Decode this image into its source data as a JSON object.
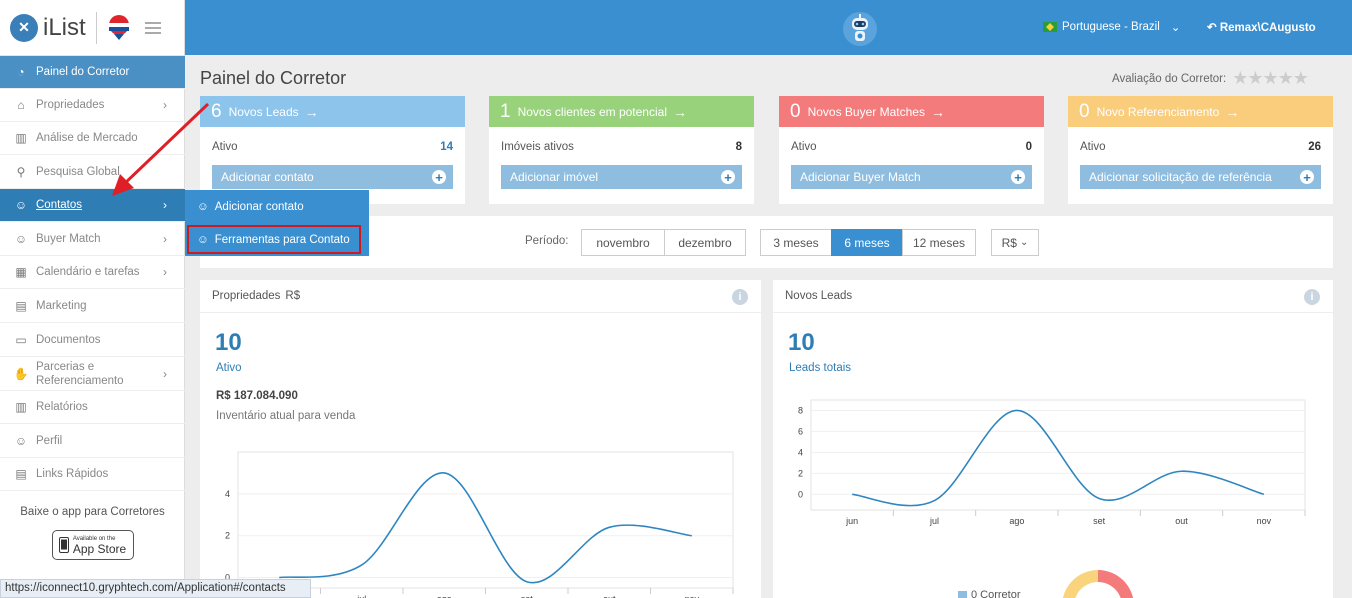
{
  "brand": {
    "logo_text": "iList"
  },
  "topbar": {
    "language": "Portuguese - Brazil",
    "user": "Remax\\CAugusto"
  },
  "sidebar": {
    "items": [
      {
        "label": "Painel do Corretor",
        "icon": "gauge-icon"
      },
      {
        "label": "Propriedades",
        "icon": "home-icon"
      },
      {
        "label": "Análise de Mercado",
        "icon": "bar-chart-icon"
      },
      {
        "label": "Pesquisa Global",
        "icon": "search-icon"
      },
      {
        "label": "Contatos",
        "icon": "contacts-icon"
      },
      {
        "label": "Buyer Match",
        "icon": "user-icon"
      },
      {
        "label": "Calendário e tarefas",
        "icon": "calendar-icon"
      },
      {
        "label": "Marketing",
        "icon": "newspaper-icon"
      },
      {
        "label": "Documentos",
        "icon": "folder-icon"
      },
      {
        "label": "Parcerias e Referenciamento",
        "icon": "handshake-icon"
      },
      {
        "label": "Relatórios",
        "icon": "bar-chart-icon"
      },
      {
        "label": "Perfil",
        "icon": "user-icon"
      },
      {
        "label": "Links Rápidos",
        "icon": "link-icon"
      }
    ],
    "app_promo": "Baixe o app para Corretores",
    "app_store_small": "Available on the",
    "app_store_big": "App Store"
  },
  "flyout": {
    "items": [
      {
        "label": "Adicionar contato"
      },
      {
        "label": "Ferramentas para Contato"
      }
    ]
  },
  "page": {
    "title": "Painel do Corretor",
    "rating_label": "Avaliação do Corretor:",
    "rating_stars": 0
  },
  "cards": [
    {
      "num": "6",
      "title": "Novos Leads",
      "row_label": "Ativo",
      "row_value": "14",
      "button": "Adicionar contato",
      "color": "#8cc4ec"
    },
    {
      "num": "1",
      "title": "Novos clientes em potencial",
      "row_label": "Imóveis ativos",
      "row_value": "8",
      "button": "Adicionar imóvel",
      "color": "#98d27b"
    },
    {
      "num": "0",
      "title": "Novos Buyer Matches",
      "row_label": "Ativo",
      "row_value": "0",
      "button": "Adicionar Buyer Match",
      "color": "#f47b7b"
    },
    {
      "num": "0",
      "title": "Novo Referenciamento",
      "row_label": "Ativo",
      "row_value": "26",
      "button": "Adicionar solicitação de referência",
      "color": "#f9cd7c"
    }
  ],
  "period": {
    "label": "Período:",
    "months": [
      "novembro",
      "dezembro"
    ],
    "ranges": [
      "3 meses",
      "6 meses",
      "12 meses"
    ],
    "selected_range": "6 meses",
    "currency": "R$"
  },
  "panels": {
    "properties": {
      "title": "Propriedades",
      "currency": "R$",
      "count": "10",
      "count_label": "Ativo",
      "amount": "R$ 187.084.090",
      "amount_label": "Inventário atual para venda"
    },
    "leads": {
      "title": "Novos Leads",
      "count": "10",
      "count_label": "Leads totais",
      "legend": "0 Corretor"
    }
  },
  "chart_data": [
    {
      "type": "line",
      "categories": [
        "jun",
        "jul",
        "ago",
        "set",
        "out",
        "nov"
      ],
      "values": [
        0,
        0.6,
        5,
        -0.2,
        2.4,
        2
      ],
      "ylim": [
        -0.5,
        6
      ],
      "yticks": [
        0,
        2,
        4
      ],
      "grid": true
    },
    {
      "type": "line",
      "categories": [
        "jun",
        "jul",
        "ago",
        "set",
        "out",
        "nov"
      ],
      "values": [
        0,
        -0.6,
        8,
        -0.4,
        2.2,
        0
      ],
      "ylim": [
        -1.5,
        9
      ],
      "yticks": [
        0,
        2,
        4,
        6,
        8
      ],
      "grid": true
    }
  ],
  "status_url": "https://iconnect10.gryphtech.com/Application#/contacts"
}
